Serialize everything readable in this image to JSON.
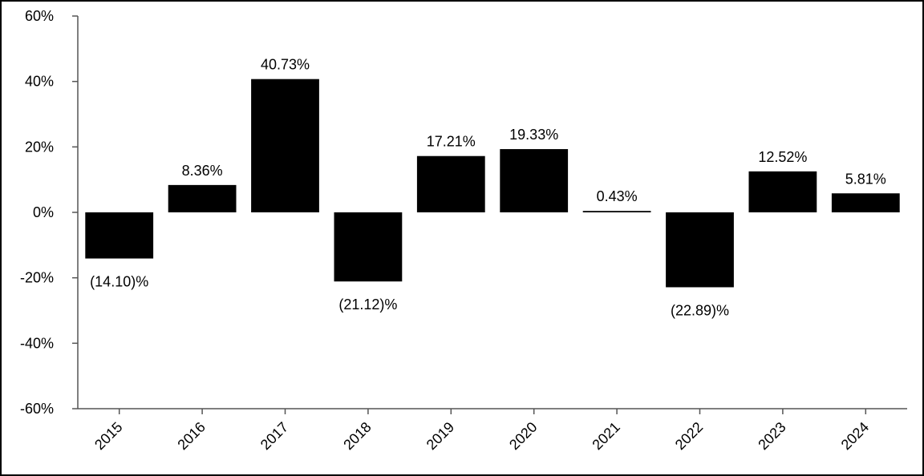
{
  "chart_data": {
    "type": "bar",
    "categories": [
      "2015",
      "2016",
      "2017",
      "2018",
      "2019",
      "2020",
      "2021",
      "2022",
      "2023",
      "2024"
    ],
    "values": [
      -14.1,
      8.36,
      40.73,
      -21.12,
      17.21,
      19.33,
      0.43,
      -22.89,
      12.52,
      5.81
    ],
    "data_labels": [
      "(14.10)%",
      "8.36%",
      "40.73%",
      "(21.12)%",
      "17.21%",
      "19.33%",
      "0.43%",
      "(22.89)%",
      "12.52%",
      "5.81%"
    ],
    "y_ticks": [
      60,
      40,
      20,
      0,
      -20,
      -40,
      -60
    ],
    "y_tick_labels": [
      "60%",
      "40%",
      "20%",
      "0%",
      "-20%",
      "-40%",
      "-60%"
    ],
    "ylim": [
      -60,
      60
    ],
    "bar_color": "#000000",
    "grid": false,
    "legend": "none"
  }
}
